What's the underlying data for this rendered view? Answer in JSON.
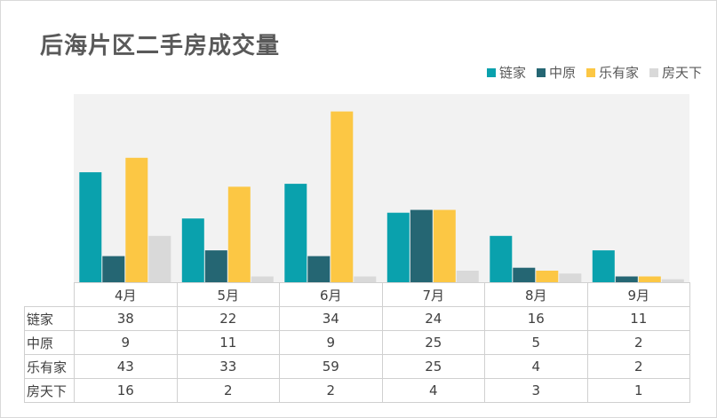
{
  "chart_data": {
    "type": "bar",
    "title": "后海片区二手房成交量",
    "categories": [
      "4月",
      "5月",
      "6月",
      "7月",
      "8月",
      "9月"
    ],
    "series": [
      {
        "name": "链家",
        "color": "#0aa1ad",
        "values": [
          38,
          22,
          34,
          24,
          16,
          11
        ]
      },
      {
        "name": "中原",
        "color": "#256673",
        "values": [
          9,
          11,
          9,
          25,
          5,
          2
        ]
      },
      {
        "name": "乐有家",
        "color": "#fcc744",
        "values": [
          43,
          33,
          59,
          25,
          4,
          2
        ]
      },
      {
        "name": "房天下",
        "color": "#d9d9d9",
        "values": [
          16,
          2,
          2,
          4,
          3,
          1
        ]
      }
    ],
    "ylim": [
      0,
      65
    ],
    "grid": false,
    "legend": "top-right",
    "has_data_table": true,
    "plot_background": "#f2f2f2"
  }
}
